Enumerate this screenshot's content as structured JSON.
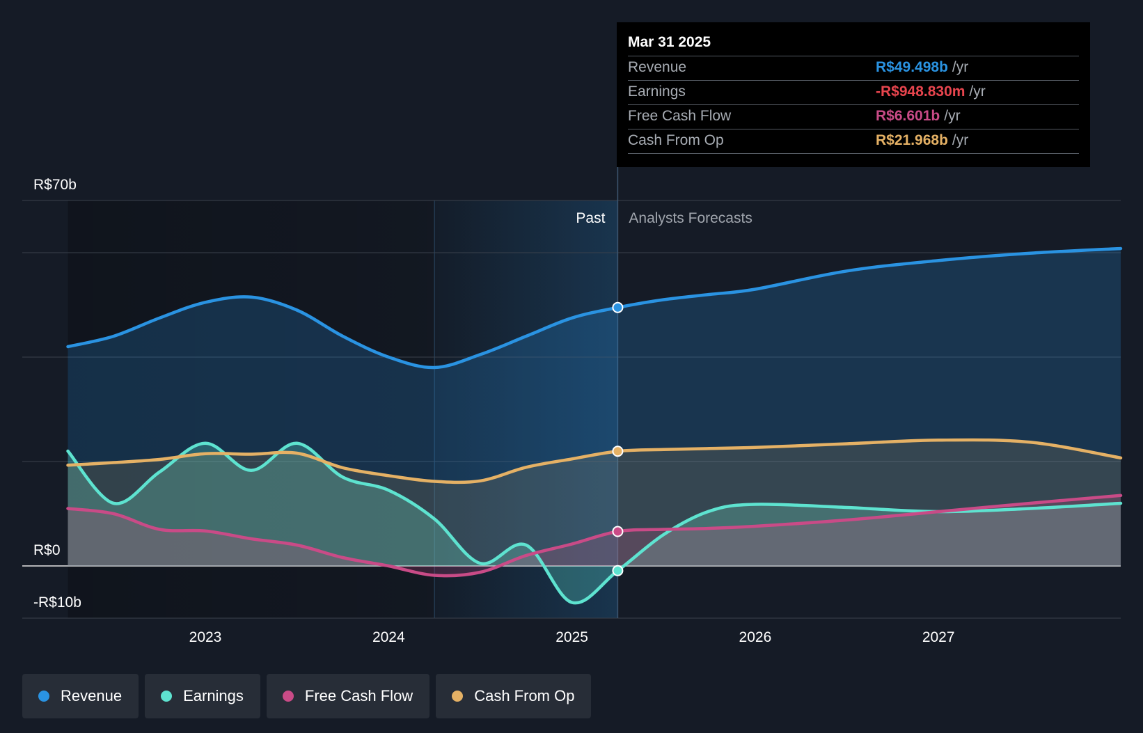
{
  "chart_data": {
    "type": "area",
    "title": "",
    "y_axis_labels": [
      "R$70b",
      "R$0",
      "-R$10b"
    ],
    "ylim": [
      -10,
      70
    ],
    "gridlines_y": [
      70,
      60,
      40,
      20,
      0,
      -10
    ],
    "x_ticks": [
      2023,
      2024,
      2025,
      2026,
      2027
    ],
    "xlim": [
      2022.25,
      2028.0
    ],
    "divider_x": 2025.25,
    "past_band_start": 2024.25,
    "past_label": "Past",
    "forecast_label": "Analysts Forecasts",
    "series": [
      {
        "name": "Revenue",
        "color": "#2a93e2",
        "points": [
          [
            2022.25,
            42
          ],
          [
            2022.5,
            44
          ],
          [
            2022.75,
            47.5
          ],
          [
            2023.0,
            50.5
          ],
          [
            2023.25,
            51.5
          ],
          [
            2023.5,
            49
          ],
          [
            2023.75,
            44
          ],
          [
            2024.0,
            40
          ],
          [
            2024.25,
            38
          ],
          [
            2024.5,
            40.5
          ],
          [
            2024.75,
            44
          ],
          [
            2025.0,
            47.5
          ],
          [
            2025.25,
            49.5
          ],
          [
            2025.5,
            51
          ],
          [
            2025.75,
            52
          ],
          [
            2026.0,
            53
          ],
          [
            2026.5,
            56.5
          ],
          [
            2027.0,
            58.5
          ],
          [
            2027.5,
            59.9
          ],
          [
            2028.0,
            60.8
          ]
        ]
      },
      {
        "name": "Earnings",
        "color": "#5ee3d0",
        "points": [
          [
            2022.25,
            22
          ],
          [
            2022.5,
            12
          ],
          [
            2022.75,
            18
          ],
          [
            2023.0,
            23.5
          ],
          [
            2023.25,
            18.3
          ],
          [
            2023.5,
            23.5
          ],
          [
            2023.75,
            17
          ],
          [
            2024.0,
            14.5
          ],
          [
            2024.25,
            9
          ],
          [
            2024.5,
            0.5
          ],
          [
            2024.75,
            4
          ],
          [
            2025.0,
            -7
          ],
          [
            2025.25,
            -0.9
          ],
          [
            2025.5,
            6
          ],
          [
            2025.75,
            10.5
          ],
          [
            2026.0,
            11.8
          ],
          [
            2026.5,
            11.2
          ],
          [
            2027.0,
            10.4
          ],
          [
            2027.5,
            11
          ],
          [
            2028.0,
            12
          ]
        ]
      },
      {
        "name": "Free Cash Flow",
        "color": "#c94b87",
        "points": [
          [
            2022.25,
            11
          ],
          [
            2022.5,
            10
          ],
          [
            2022.75,
            7
          ],
          [
            2023.0,
            6.7
          ],
          [
            2023.25,
            5.2
          ],
          [
            2023.5,
            4
          ],
          [
            2023.75,
            1.6
          ],
          [
            2024.0,
            0
          ],
          [
            2024.25,
            -1.8
          ],
          [
            2024.5,
            -1.2
          ],
          [
            2024.75,
            2
          ],
          [
            2025.0,
            4.2
          ],
          [
            2025.25,
            6.6
          ],
          [
            2025.5,
            7
          ],
          [
            2025.75,
            7.2
          ],
          [
            2026.0,
            7.6
          ],
          [
            2026.5,
            8.8
          ],
          [
            2027.0,
            10.4
          ],
          [
            2027.5,
            12
          ],
          [
            2028.0,
            13.5
          ]
        ]
      },
      {
        "name": "Cash From Op",
        "color": "#e5b165",
        "points": [
          [
            2022.25,
            19.3
          ],
          [
            2022.5,
            19.8
          ],
          [
            2022.75,
            20.4
          ],
          [
            2023.0,
            21.5
          ],
          [
            2023.25,
            21.4
          ],
          [
            2023.5,
            21.6
          ],
          [
            2023.75,
            18.8
          ],
          [
            2024.0,
            17.3
          ],
          [
            2024.25,
            16.2
          ],
          [
            2024.5,
            16.3
          ],
          [
            2024.75,
            18.9
          ],
          [
            2025.0,
            20.5
          ],
          [
            2025.25,
            21.97
          ],
          [
            2025.5,
            22.3
          ],
          [
            2025.75,
            22.5
          ],
          [
            2026.0,
            22.7
          ],
          [
            2026.5,
            23.4
          ],
          [
            2027.0,
            24.1
          ],
          [
            2027.5,
            23.7
          ],
          [
            2028.0,
            20.7
          ]
        ]
      }
    ]
  },
  "tooltip": {
    "date": "Mar 31 2025",
    "rows": [
      {
        "label": "Revenue",
        "value": "R$49.498b",
        "unit": "/yr",
        "color": "#2a93e2"
      },
      {
        "label": "Earnings",
        "value": "-R$948.830m",
        "unit": "/yr",
        "color": "#e8454e"
      },
      {
        "label": "Free Cash Flow",
        "value": "R$6.601b",
        "unit": "/yr",
        "color": "#c94b87"
      },
      {
        "label": "Cash From Op",
        "value": "R$21.968b",
        "unit": "/yr",
        "color": "#e5b165"
      }
    ]
  },
  "legend": [
    {
      "label": "Revenue",
      "color": "#2a93e2"
    },
    {
      "label": "Earnings",
      "color": "#5ee3d0"
    },
    {
      "label": "Free Cash Flow",
      "color": "#c94b87"
    },
    {
      "label": "Cash From Op",
      "color": "#e5b165"
    }
  ]
}
